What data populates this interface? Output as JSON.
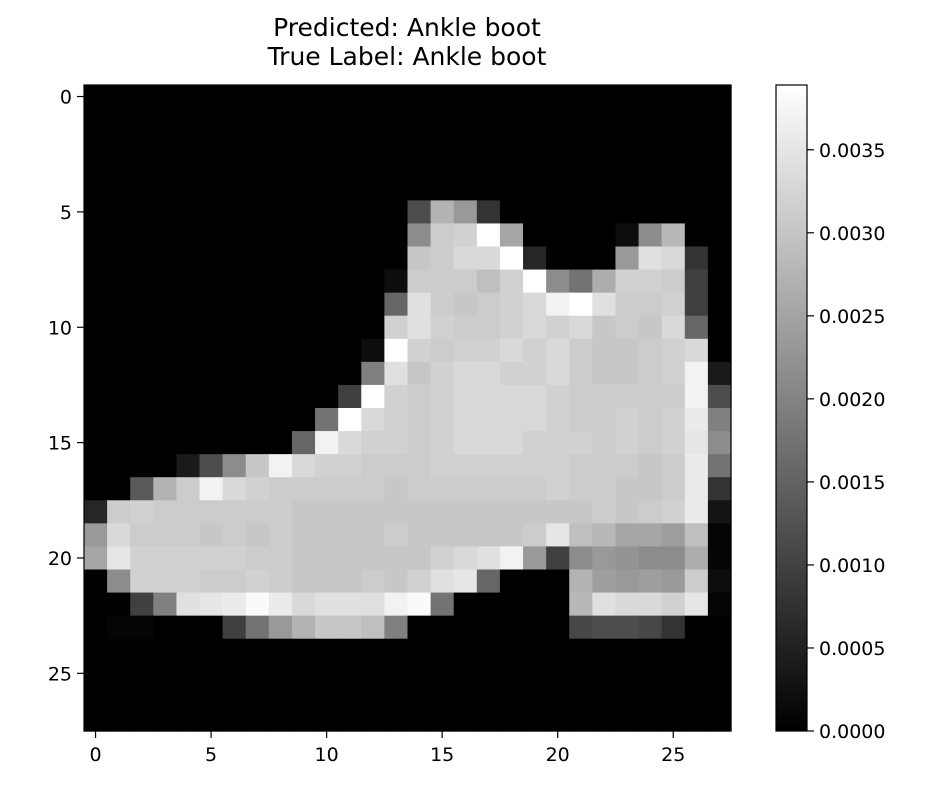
{
  "chart_data": {
    "type": "heatmap",
    "title": "Predicted: Ankle boot\nTrue Label: Ankle boot",
    "title_lines": [
      "Predicted: Ankle boot",
      "True Label: Ankle boot"
    ],
    "predicted_label": "Ankle boot",
    "true_label": "Ankle boot",
    "xlabel": "",
    "ylabel": "",
    "colormap": "gray",
    "x_ticks": [
      0,
      5,
      10,
      15,
      20,
      25
    ],
    "y_ticks": [
      0,
      5,
      10,
      15,
      20,
      25
    ],
    "x_tick_labels": [
      "0",
      "5",
      "10",
      "15",
      "20",
      "25"
    ],
    "y_tick_labels": [
      "0",
      "5",
      "10",
      "15",
      "20",
      "25"
    ],
    "colorbar": {
      "range": [
        0.0,
        0.00389
      ],
      "ticks": [
        0.0,
        0.0005,
        0.001,
        0.0015,
        0.002,
        0.0025,
        0.003,
        0.0035
      ],
      "tick_labels": [
        "0.0000",
        "0.0005",
        "0.0010",
        "0.0015",
        "0.0020",
        "0.0025",
        "0.0030",
        "0.0035"
      ]
    },
    "grid": false,
    "z_scale": 0.00389,
    "z_rows": [
      [
        0,
        0,
        0,
        0,
        0,
        0,
        0,
        0,
        0,
        0,
        0,
        0,
        0,
        0,
        0,
        0,
        0,
        0,
        0,
        0,
        0,
        0,
        0,
        0,
        0,
        0,
        0,
        0
      ],
      [
        0,
        0,
        0,
        0,
        0,
        0,
        0,
        0,
        0,
        0,
        0,
        0,
        0,
        0,
        0,
        0,
        0,
        0,
        0,
        0,
        0,
        0,
        0,
        0,
        0,
        0,
        0,
        0
      ],
      [
        0,
        0,
        0,
        0,
        0,
        0,
        0,
        0,
        0,
        0,
        0,
        0,
        0,
        0,
        0,
        0,
        0,
        0,
        0,
        0,
        0,
        0,
        0,
        0,
        0,
        0,
        0,
        0
      ],
      [
        0,
        0,
        0,
        0,
        0,
        0,
        0,
        0,
        0,
        0,
        0,
        0,
        0,
        0,
        0,
        0,
        0,
        0,
        0,
        0,
        0,
        0,
        0,
        0,
        0,
        0,
        0,
        0
      ],
      [
        0,
        0,
        0,
        0,
        0,
        0,
        0,
        0,
        0,
        0,
        0,
        0,
        0,
        0,
        0,
        0,
        0,
        0,
        0,
        0,
        0,
        0,
        0,
        0,
        0,
        0,
        0,
        0
      ],
      [
        0,
        0,
        0,
        0,
        0,
        0,
        0,
        0,
        0,
        0,
        0,
        0,
        0,
        0,
        0.3,
        0.7,
        0.6,
        0.2,
        0,
        0,
        0,
        0,
        0,
        0,
        0,
        0,
        0,
        0
      ],
      [
        0,
        0,
        0,
        0,
        0,
        0,
        0,
        0,
        0,
        0,
        0,
        0,
        0,
        0,
        0.55,
        0.8,
        0.82,
        1.0,
        0.65,
        0,
        0,
        0,
        0,
        0.05,
        0.55,
        0.72,
        0,
        0
      ],
      [
        0,
        0,
        0,
        0,
        0,
        0,
        0,
        0,
        0,
        0,
        0,
        0,
        0,
        0,
        0.78,
        0.8,
        0.85,
        0.85,
        1.0,
        0.15,
        0,
        0,
        0,
        0.6,
        0.88,
        0.85,
        0.2,
        0
      ],
      [
        0,
        0,
        0,
        0,
        0,
        0,
        0,
        0,
        0,
        0,
        0,
        0,
        0,
        0.05,
        0.8,
        0.8,
        0.8,
        0.75,
        0.82,
        1.0,
        0.55,
        0.45,
        0.68,
        0.82,
        0.82,
        0.8,
        0.25,
        0
      ],
      [
        0,
        0,
        0,
        0,
        0,
        0,
        0,
        0,
        0,
        0,
        0,
        0,
        0,
        0.4,
        0.88,
        0.8,
        0.78,
        0.8,
        0.82,
        0.85,
        0.95,
        1.0,
        0.88,
        0.8,
        0.8,
        0.82,
        0.25,
        0
      ],
      [
        0,
        0,
        0,
        0,
        0,
        0,
        0,
        0,
        0,
        0,
        0,
        0,
        0,
        0.82,
        0.88,
        0.82,
        0.8,
        0.8,
        0.82,
        0.85,
        0.82,
        0.85,
        0.78,
        0.8,
        0.78,
        0.85,
        0.4,
        0
      ],
      [
        0,
        0,
        0,
        0,
        0,
        0,
        0,
        0,
        0,
        0,
        0,
        0,
        0.05,
        1.0,
        0.82,
        0.8,
        0.82,
        0.82,
        0.85,
        0.82,
        0.85,
        0.8,
        0.78,
        0.78,
        0.8,
        0.82,
        0.85,
        0
      ],
      [
        0,
        0,
        0,
        0,
        0,
        0,
        0,
        0,
        0,
        0,
        0,
        0,
        0.5,
        0.88,
        0.78,
        0.82,
        0.85,
        0.85,
        0.82,
        0.82,
        0.85,
        0.8,
        0.78,
        0.78,
        0.8,
        0.82,
        0.95,
        0.1
      ],
      [
        0,
        0,
        0,
        0,
        0,
        0,
        0,
        0,
        0,
        0,
        0,
        0.25,
        1.0,
        0.82,
        0.8,
        0.82,
        0.85,
        0.85,
        0.85,
        0.85,
        0.82,
        0.8,
        0.8,
        0.8,
        0.8,
        0.8,
        0.95,
        0.3
      ],
      [
        0,
        0,
        0,
        0,
        0,
        0,
        0,
        0,
        0,
        0,
        0.45,
        1.0,
        0.85,
        0.82,
        0.8,
        0.82,
        0.85,
        0.85,
        0.85,
        0.85,
        0.82,
        0.8,
        0.8,
        0.82,
        0.8,
        0.82,
        0.92,
        0.5
      ],
      [
        0,
        0,
        0,
        0,
        0,
        0,
        0,
        0,
        0,
        0.4,
        0.95,
        0.85,
        0.82,
        0.82,
        0.8,
        0.82,
        0.85,
        0.85,
        0.85,
        0.82,
        0.82,
        0.82,
        0.8,
        0.82,
        0.8,
        0.82,
        0.9,
        0.55
      ],
      [
        0,
        0,
        0,
        0,
        0.1,
        0.3,
        0.55,
        0.78,
        0.95,
        0.85,
        0.82,
        0.82,
        0.8,
        0.8,
        0.8,
        0.82,
        0.82,
        0.82,
        0.82,
        0.82,
        0.82,
        0.8,
        0.8,
        0.8,
        0.78,
        0.8,
        0.92,
        0.45
      ],
      [
        0,
        0,
        0.35,
        0.7,
        0.8,
        0.95,
        0.85,
        0.82,
        0.8,
        0.8,
        0.8,
        0.8,
        0.8,
        0.78,
        0.8,
        0.8,
        0.8,
        0.8,
        0.8,
        0.8,
        0.82,
        0.8,
        0.8,
        0.78,
        0.78,
        0.8,
        0.92,
        0.2
      ],
      [
        0.15,
        0.8,
        0.82,
        0.8,
        0.8,
        0.8,
        0.8,
        0.8,
        0.8,
        0.78,
        0.78,
        0.78,
        0.78,
        0.78,
        0.78,
        0.78,
        0.78,
        0.78,
        0.78,
        0.78,
        0.78,
        0.78,
        0.8,
        0.78,
        0.8,
        0.82,
        0.92,
        0.08
      ],
      [
        0.6,
        0.85,
        0.8,
        0.8,
        0.8,
        0.78,
        0.8,
        0.78,
        0.8,
        0.78,
        0.78,
        0.78,
        0.78,
        0.8,
        0.78,
        0.78,
        0.78,
        0.78,
        0.78,
        0.8,
        0.9,
        0.75,
        0.72,
        0.65,
        0.65,
        0.62,
        0.75,
        0.02
      ],
      [
        0.65,
        0.9,
        0.82,
        0.82,
        0.82,
        0.82,
        0.82,
        0.8,
        0.8,
        0.78,
        0.78,
        0.78,
        0.78,
        0.78,
        0.78,
        0.82,
        0.85,
        0.88,
        0.95,
        0.6,
        0.25,
        0.55,
        0.6,
        0.58,
        0.55,
        0.55,
        0.68,
        0.02
      ],
      [
        0,
        0.55,
        0.82,
        0.82,
        0.82,
        0.8,
        0.8,
        0.82,
        0.8,
        0.78,
        0.78,
        0.78,
        0.8,
        0.78,
        0.82,
        0.88,
        0.9,
        0.4,
        0,
        0,
        0,
        0.7,
        0.62,
        0.6,
        0.62,
        0.6,
        0.8,
        0.05
      ],
      [
        0,
        0,
        0.25,
        0.5,
        0.88,
        0.9,
        0.92,
        0.98,
        0.92,
        0.85,
        0.88,
        0.88,
        0.88,
        0.95,
        0.98,
        0.45,
        0,
        0,
        0,
        0,
        0,
        0.72,
        0.88,
        0.85,
        0.85,
        0.82,
        0.9,
        0.02
      ],
      [
        0,
        0.02,
        0.02,
        0,
        0,
        0,
        0.25,
        0.45,
        0.6,
        0.7,
        0.78,
        0.78,
        0.75,
        0.5,
        0,
        0,
        0,
        0,
        0,
        0,
        0,
        0.28,
        0.3,
        0.3,
        0.28,
        0.2,
        0,
        0
      ],
      [
        0,
        0,
        0,
        0,
        0,
        0,
        0,
        0,
        0,
        0,
        0,
        0,
        0,
        0,
        0,
        0,
        0,
        0,
        0,
        0,
        0,
        0,
        0,
        0,
        0,
        0,
        0,
        0
      ],
      [
        0,
        0,
        0,
        0,
        0,
        0,
        0,
        0,
        0,
        0,
        0,
        0,
        0,
        0,
        0,
        0,
        0,
        0,
        0,
        0,
        0,
        0,
        0,
        0,
        0,
        0,
        0,
        0
      ],
      [
        0,
        0,
        0,
        0,
        0,
        0,
        0,
        0,
        0,
        0,
        0,
        0,
        0,
        0,
        0,
        0,
        0,
        0,
        0,
        0,
        0,
        0,
        0,
        0,
        0,
        0,
        0,
        0
      ],
      [
        0,
        0,
        0,
        0,
        0,
        0,
        0,
        0,
        0,
        0,
        0,
        0,
        0,
        0,
        0,
        0,
        0,
        0,
        0,
        0,
        0,
        0,
        0,
        0,
        0,
        0,
        0,
        0
      ]
    ]
  }
}
